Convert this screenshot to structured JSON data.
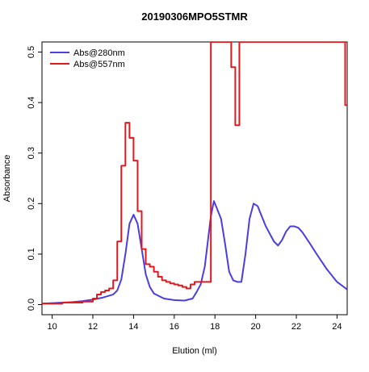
{
  "chart_data": {
    "type": "line",
    "title": "20190306MPO5STMR",
    "xlabel": "Elution (ml)",
    "ylabel": "Absorbance",
    "xlim": [
      9.5,
      24.5
    ],
    "ylim": [
      -0.02,
      0.52
    ],
    "x_ticks": [
      10,
      12,
      14,
      16,
      18,
      20,
      22,
      24
    ],
    "y_ticks": [
      0.0,
      0.1,
      0.2,
      0.3,
      0.4,
      0.5
    ],
    "x_tick_labels": [
      "10",
      "12",
      "14",
      "16",
      "18",
      "20",
      "22",
      "24"
    ],
    "y_tick_labels": [
      "0.0",
      "0.1",
      "0.2",
      "0.3",
      "0.4",
      "0.5"
    ],
    "grid": false,
    "legend_position": "top-left",
    "series": [
      {
        "name": "Abs@280nm",
        "color": "#4b3ee0",
        "style": "line",
        "x": [
          9.5,
          10,
          10.5,
          11,
          11.5,
          12,
          12.5,
          13,
          13.2,
          13.4,
          13.6,
          13.8,
          14.0,
          14.2,
          14.4,
          14.6,
          14.8,
          15.0,
          15.5,
          16.0,
          16.5,
          16.9,
          17.1,
          17.3,
          17.5,
          17.65,
          17.8,
          17.95,
          18.05,
          18.3,
          18.5,
          18.7,
          18.9,
          19.1,
          19.3,
          19.5,
          19.7,
          19.9,
          20.1,
          20.3,
          20.5,
          20.7,
          20.9,
          21.1,
          21.3,
          21.5,
          21.7,
          21.9,
          22.1,
          22.3,
          22.6,
          23.0,
          23.5,
          24.0,
          24.5
        ],
        "y": [
          0.002,
          0.003,
          0.004,
          0.005,
          0.007,
          0.01,
          0.014,
          0.02,
          0.028,
          0.05,
          0.1,
          0.16,
          0.178,
          0.16,
          0.11,
          0.06,
          0.035,
          0.022,
          0.012,
          0.009,
          0.008,
          0.012,
          0.025,
          0.04,
          0.075,
          0.125,
          0.175,
          0.205,
          0.195,
          0.17,
          0.12,
          0.065,
          0.048,
          0.045,
          0.045,
          0.1,
          0.17,
          0.2,
          0.195,
          0.175,
          0.155,
          0.14,
          0.125,
          0.117,
          0.128,
          0.145,
          0.155,
          0.155,
          0.152,
          0.143,
          0.125,
          0.1,
          0.07,
          0.045,
          0.03
        ]
      },
      {
        "name": "Abs@557nm",
        "color": "#e0191e",
        "style": "step",
        "x": [
          9.5,
          10.5,
          11.5,
          12.0,
          12.2,
          12.4,
          12.6,
          12.8,
          13.0,
          13.2,
          13.4,
          13.6,
          13.8,
          14.0,
          14.2,
          14.4,
          14.6,
          14.8,
          15.0,
          15.2,
          15.4,
          15.6,
          15.8,
          16.0,
          16.2,
          16.4,
          16.6,
          16.8,
          17.0,
          17.2,
          17.4,
          17.6,
          17.8,
          18.8,
          19.0,
          19.2,
          19.4,
          24.2,
          24.4
        ],
        "y": [
          0.002,
          0.004,
          0.006,
          0.012,
          0.02,
          0.025,
          0.028,
          0.032,
          0.048,
          0.125,
          0.275,
          0.36,
          0.33,
          0.285,
          0.185,
          0.11,
          0.08,
          0.075,
          0.065,
          0.055,
          0.048,
          0.045,
          0.042,
          0.04,
          0.038,
          0.035,
          0.032,
          0.04,
          0.045,
          0.045,
          0.045,
          0.045,
          0.52,
          0.47,
          0.355,
          0.52,
          0.52,
          0.52,
          0.395
        ]
      }
    ]
  }
}
